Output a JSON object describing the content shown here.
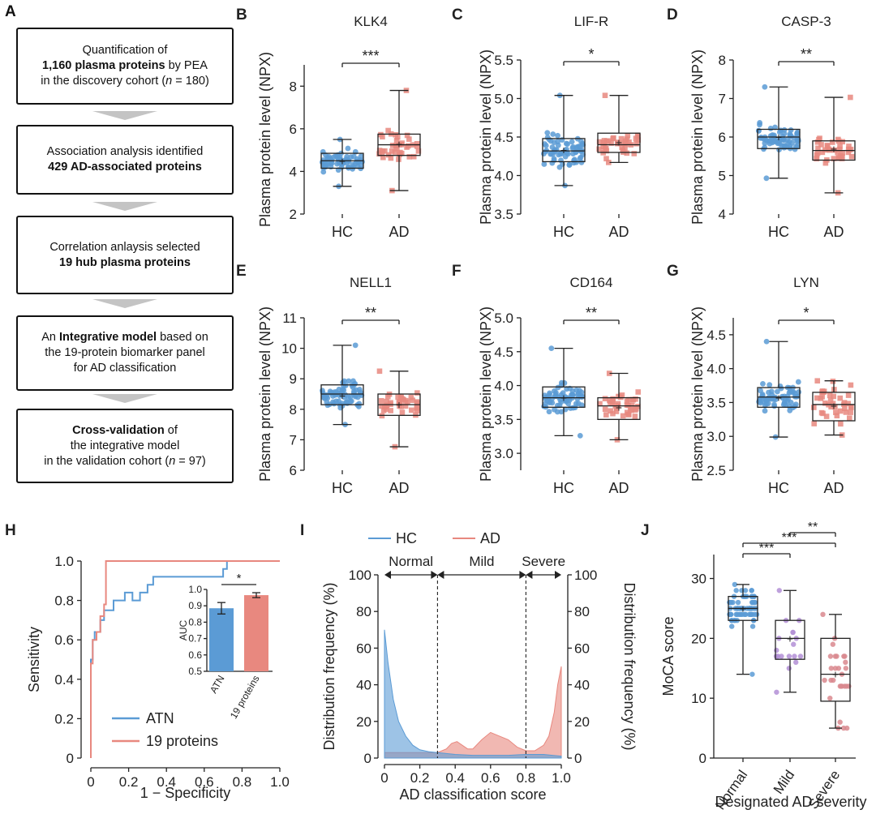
{
  "panel_letters": [
    "A",
    "B",
    "C",
    "D",
    "E",
    "F",
    "G",
    "H",
    "I",
    "J"
  ],
  "flowchart": {
    "boxes": [
      {
        "pre": "Quantification of",
        "bold": "1,160 plasma proteins",
        "post": " by PEA",
        "line3": "in the discovery cohort (",
        "n": "n",
        "line3b": " = 180)"
      },
      {
        "pre": "Association analysis identified",
        "bold": "429 AD-associated proteins"
      },
      {
        "pre": "Correlation anlaysis selected",
        "bold": "19 hub plasma proteins"
      },
      {
        "pre": "An ",
        "bold": "Integrative model",
        "post": " based on",
        "line2": "the 19-protein biomarker panel",
        "line3": "for AD classification"
      },
      {
        "bold": "Cross-validation",
        "post": " of",
        "line2": "the integrative model",
        "line3": "in the validation cohort (",
        "n": "n",
        "line3b": " = 97)"
      }
    ]
  },
  "chart_data": [
    {
      "id": "B",
      "type": "box",
      "title": "KLK4",
      "ylabel": "Plasma protein level (NPX)",
      "ylim": [
        2,
        9
      ],
      "yticks": [
        "2",
        "4",
        "6",
        "8"
      ],
      "categories": [
        "HC",
        "AD"
      ],
      "significance": "***",
      "series": [
        {
          "name": "HC",
          "min": 3.3,
          "q1": 4.15,
          "median": 4.5,
          "mean": 4.5,
          "q3": 4.85,
          "max": 5.5
        },
        {
          "name": "AD",
          "min": 3.1,
          "q1": 4.75,
          "median": 5.25,
          "mean": 5.3,
          "q3": 5.75,
          "max": 7.8
        }
      ]
    },
    {
      "id": "C",
      "type": "box",
      "title": "LIF-R",
      "ylabel": "Plasma protein level (NPX)",
      "ylim": [
        3.5,
        5.5
      ],
      "yticks": [
        "3.5",
        "4.0",
        "4.5",
        "5.0",
        "5.5"
      ],
      "categories": [
        "HC",
        "AD"
      ],
      "significance": "*",
      "series": [
        {
          "name": "HC",
          "min": 3.87,
          "q1": 4.18,
          "median": 4.32,
          "mean": 4.33,
          "q3": 4.48,
          "max": 5.04
        },
        {
          "name": "AD",
          "min": 4.17,
          "q1": 4.3,
          "median": 4.4,
          "mean": 4.43,
          "q3": 4.55,
          "max": 5.04
        }
      ]
    },
    {
      "id": "D",
      "type": "box",
      "title": "CASP-3",
      "ylabel": "Plasma protein level (NPX)",
      "ylim": [
        4,
        8
      ],
      "yticks": [
        "4",
        "5",
        "6",
        "7",
        "8"
      ],
      "categories": [
        "HC",
        "AD"
      ],
      "significance": "**",
      "series": [
        {
          "name": "HC",
          "min": 4.93,
          "q1": 5.7,
          "median": 6.0,
          "mean": 6.0,
          "q3": 6.2,
          "max": 7.3
        },
        {
          "name": "AD",
          "min": 4.55,
          "q1": 5.4,
          "median": 5.65,
          "mean": 5.7,
          "q3": 5.9,
          "max": 7.03
        }
      ]
    },
    {
      "id": "E",
      "type": "box",
      "title": "NELL1",
      "ylabel": "Plasma protein level (NPX)",
      "ylim": [
        6,
        11
      ],
      "yticks": [
        "6",
        "7",
        "8",
        "9",
        "10",
        "11"
      ],
      "categories": [
        "HC",
        "AD"
      ],
      "significance": "**",
      "series": [
        {
          "name": "HC",
          "min": 7.5,
          "q1": 8.15,
          "median": 8.5,
          "mean": 8.45,
          "q3": 8.8,
          "max": 10.1
        },
        {
          "name": "AD",
          "min": 6.77,
          "q1": 7.8,
          "median": 8.15,
          "mean": 8.15,
          "q3": 8.5,
          "max": 9.25
        }
      ]
    },
    {
      "id": "F",
      "type": "box",
      "title": "CD164",
      "ylabel": "Plasma protein level (NPX)",
      "ylim": [
        2.75,
        5.0
      ],
      "yticks": [
        "3.0",
        "3.5",
        "4.0",
        "4.5",
        "5.0"
      ],
      "categories": [
        "HC",
        "AD"
      ],
      "significance": "**",
      "series": [
        {
          "name": "HC",
          "min": 3.26,
          "q1": 3.68,
          "median": 3.82,
          "mean": 3.82,
          "q3": 3.98,
          "max": 4.55
        },
        {
          "name": "AD",
          "min": 3.2,
          "q1": 3.5,
          "median": 3.7,
          "mean": 3.68,
          "q3": 3.82,
          "max": 4.18
        }
      ]
    },
    {
      "id": "G",
      "type": "box",
      "title": "LYN",
      "ylabel": "Plasma protein level (NPX)",
      "ylim": [
        2.5,
        4.75
      ],
      "yticks": [
        "2.5",
        "3.0",
        "3.5",
        "4.0",
        "4.5"
      ],
      "categories": [
        "HC",
        "AD"
      ],
      "significance": "*",
      "series": [
        {
          "name": "HC",
          "min": 2.99,
          "q1": 3.43,
          "median": 3.58,
          "mean": 3.57,
          "q3": 3.72,
          "max": 4.4
        },
        {
          "name": "AD",
          "min": 3.02,
          "q1": 3.23,
          "median": 3.47,
          "mean": 3.45,
          "q3": 3.65,
          "max": 3.82
        }
      ]
    },
    {
      "id": "H",
      "type": "line",
      "xlabel": "1 − Specificity",
      "ylabel": "Sensitivity",
      "xlim": [
        0,
        1
      ],
      "ylim": [
        0,
        1
      ],
      "xticks": [
        "0",
        "0.2",
        "0.4",
        "0.6",
        "0.8",
        "1.0"
      ],
      "yticks": [
        "0",
        "0.2",
        "0.4",
        "0.6",
        "0.8",
        "1.0"
      ],
      "series": [
        {
          "name": "ATN",
          "color": "#5b9bd5",
          "x": [
            0,
            0,
            0.01,
            0.01,
            0.02,
            0.02,
            0.05,
            0.05,
            0.07,
            0.07,
            0.12,
            0.12,
            0.18,
            0.18,
            0.22,
            0.22,
            0.26,
            0.26,
            0.3,
            0.3,
            0.33,
            0.33,
            0.7,
            0.7,
            0.72,
            0.72,
            1.0
          ],
          "y": [
            0,
            0.5,
            0.5,
            0.6,
            0.6,
            0.64,
            0.64,
            0.7,
            0.7,
            0.75,
            0.75,
            0.8,
            0.8,
            0.84,
            0.84,
            0.8,
            0.8,
            0.84,
            0.84,
            0.88,
            0.88,
            0.92,
            0.92,
            0.96,
            0.96,
            1.0,
            1.0
          ]
        },
        {
          "name": "19 proteins",
          "color": "#e8887f",
          "x": [
            0,
            0,
            0.01,
            0.01,
            0.03,
            0.03,
            0.05,
            0.05,
            0.07,
            0.07,
            0.08,
            0.08,
            1.0
          ],
          "y": [
            0,
            0.48,
            0.48,
            0.6,
            0.6,
            0.64,
            0.64,
            0.72,
            0.72,
            0.78,
            0.78,
            1.0,
            1.0
          ]
        }
      ],
      "inset": {
        "ylabel": "AUC",
        "categories": [
          "ATN",
          "19 proteins"
        ],
        "values": [
          0.885,
          0.965
        ],
        "errors": [
          0.035,
          0.015
        ],
        "ylim": [
          0.5,
          1.0
        ],
        "yticks": [
          "0.5",
          "0.6",
          "0.7",
          "0.8",
          "0.9",
          "1.0"
        ],
        "significance": "*"
      }
    },
    {
      "id": "I",
      "type": "area",
      "xlabel": "AD classification score",
      "ylabel": "Distribution frequency (%)",
      "ylabel_right": "Distribution frequency (%)",
      "xlim": [
        0,
        1
      ],
      "ylim": [
        0,
        100
      ],
      "xticks": [
        "0",
        "0.2",
        "0.4",
        "0.6",
        "0.8",
        "1.0"
      ],
      "yticks": [
        "0",
        "20",
        "40",
        "60",
        "80",
        "100"
      ],
      "legend": [
        "HC",
        "AD"
      ],
      "regions": [
        {
          "label": "Normal",
          "from": 0,
          "to": 0.3
        },
        {
          "label": "Mild",
          "from": 0.3,
          "to": 0.8
        },
        {
          "label": "Severe",
          "from": 0.8,
          "to": 1.0
        }
      ],
      "series": [
        {
          "name": "HC",
          "color": "#5b9bd5",
          "x": [
            0,
            0.02,
            0.05,
            0.08,
            0.12,
            0.16,
            0.2,
            0.25,
            0.3,
            0.35,
            0.4,
            0.5,
            0.6,
            0.7,
            0.8,
            0.9,
            0.95,
            1.0
          ],
          "y": [
            70,
            52,
            32,
            20,
            12,
            7,
            4.5,
            3.5,
            3,
            2.5,
            2,
            1.5,
            1.5,
            1.5,
            2,
            2,
            1.5,
            1
          ]
        },
        {
          "name": "AD",
          "color": "#e8887f",
          "x": [
            0,
            0.1,
            0.2,
            0.3,
            0.35,
            0.38,
            0.41,
            0.44,
            0.47,
            0.5,
            0.55,
            0.6,
            0.65,
            0.7,
            0.75,
            0.8,
            0.85,
            0.9,
            0.93,
            0.96,
            0.98,
            1.0
          ],
          "y": [
            3,
            3,
            3,
            3,
            5,
            8,
            9,
            7,
            5,
            5,
            10,
            14,
            12,
            10,
            6,
            4,
            4,
            7,
            12,
            25,
            40,
            50
          ]
        }
      ]
    },
    {
      "id": "J",
      "type": "box",
      "xlabel": "Designated AD severity",
      "ylabel": "MoCA score",
      "ylim": [
        0,
        34
      ],
      "yticks": [
        "0",
        "10",
        "20",
        "30"
      ],
      "categories": [
        "Normal",
        "Mild",
        "Severe"
      ],
      "series": [
        {
          "name": "Normal",
          "min": 14,
          "q1": 23,
          "median": 25,
          "mean": 25,
          "q3": 27,
          "max": 29
        },
        {
          "name": "Mild",
          "min": 11,
          "q1": 16.5,
          "median": 20,
          "mean": 20,
          "q3": 23,
          "max": 28
        },
        {
          "name": "Severe",
          "min": 5,
          "q1": 9.5,
          "median": 14,
          "mean": 14,
          "q3": 20,
          "max": 24
        }
      ],
      "brackets": [
        {
          "from": "Normal",
          "to": "Mild",
          "label": "***"
        },
        {
          "from": "Normal",
          "to": "Severe",
          "label": "***"
        },
        {
          "from": "Mild",
          "to": "Severe",
          "label": "**"
        }
      ]
    }
  ]
}
